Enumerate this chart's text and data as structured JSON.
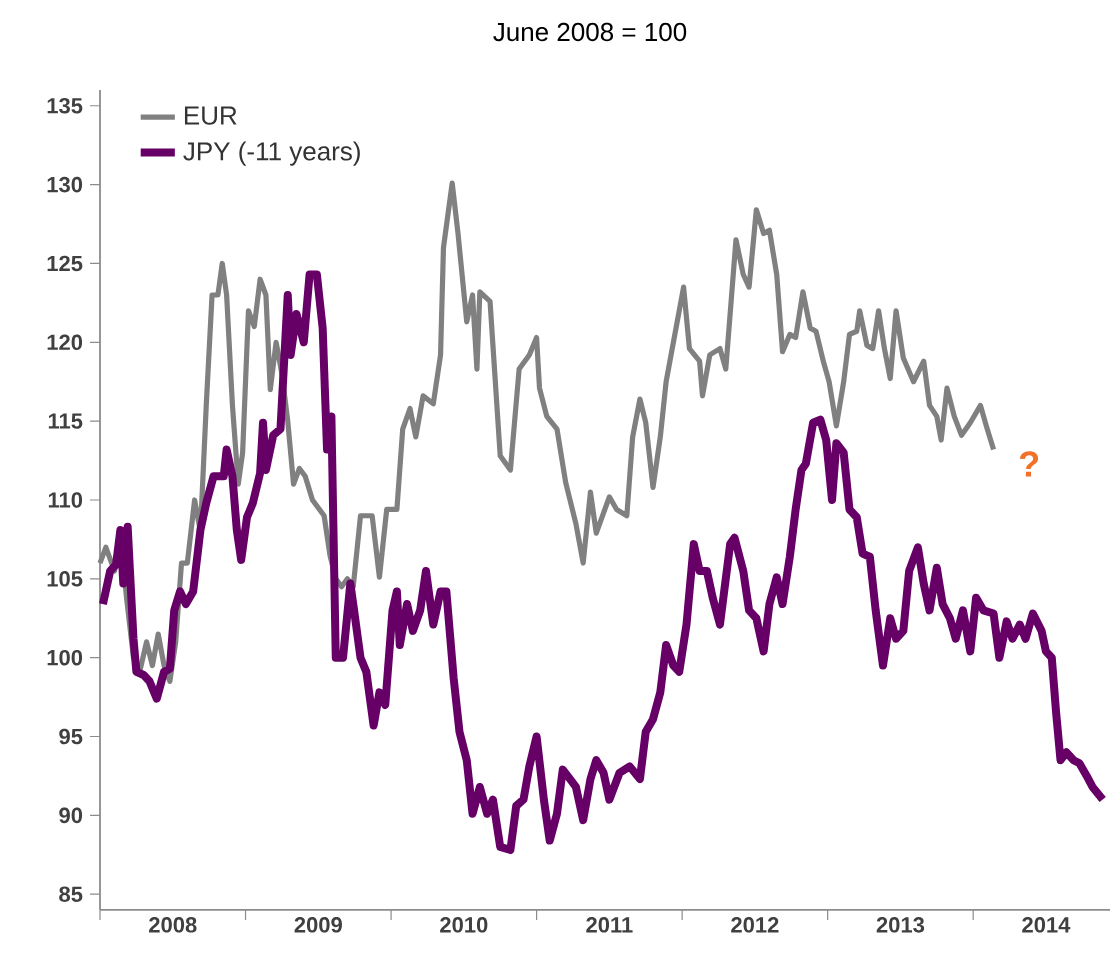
{
  "chart_data": {
    "type": "line",
    "title": "June 2008 = 100",
    "xlim": [
      2008,
      2014.94
    ],
    "ylim": [
      84,
      136
    ],
    "xticks": [
      {
        "value": 2008,
        "label": null
      },
      {
        "value": 2008.5,
        "label": "2008"
      },
      {
        "value": 2009,
        "label": null
      },
      {
        "value": 2009.5,
        "label": "2009"
      },
      {
        "value": 2010,
        "label": null
      },
      {
        "value": 2010.5,
        "label": "2010"
      },
      {
        "value": 2011,
        "label": null
      },
      {
        "value": 2011.5,
        "label": "2011"
      },
      {
        "value": 2012,
        "label": null
      },
      {
        "value": 2012.5,
        "label": "2012"
      },
      {
        "value": 2013,
        "label": null
      },
      {
        "value": 2013.5,
        "label": "2013"
      },
      {
        "value": 2014,
        "label": null
      },
      {
        "value": 2014.5,
        "label": "2014"
      }
    ],
    "yticks": [
      85,
      90,
      95,
      100,
      105,
      110,
      115,
      120,
      125,
      130,
      135
    ],
    "grid": false,
    "legend": "top left",
    "annotations": [
      "?"
    ],
    "series": [
      {
        "name": "EUR",
        "color": "#808080",
        "x": [
          2008.0,
          2008.04,
          2008.1,
          2008.14,
          2008.18,
          2008.23,
          2008.27,
          2008.32,
          2008.36,
          2008.4,
          2008.44,
          2008.48,
          2008.52,
          2008.56,
          2008.6,
          2008.65,
          2008.69,
          2008.73,
          2008.77,
          2008.81,
          2008.84,
          2008.87,
          2008.91,
          2008.95,
          2008.98,
          2009.02,
          2009.06,
          2009.1,
          2009.14,
          2009.17,
          2009.21,
          2009.25,
          2009.29,
          2009.33,
          2009.37,
          2009.41,
          2009.46,
          2009.5,
          2009.54,
          2009.58,
          2009.62,
          2009.66,
          2009.7,
          2009.74,
          2009.79,
          2009.87,
          2009.92,
          2009.97,
          2010.04,
          2010.08,
          2010.13,
          2010.17,
          2010.22,
          2010.29,
          2010.34,
          2010.36,
          2010.42,
          2010.46,
          2010.52,
          2010.56,
          2010.59,
          2010.61,
          2010.68,
          2010.75,
          2010.82,
          2010.88,
          2010.95,
          2011.0,
          2011.02,
          2011.07,
          2011.14,
          2011.2,
          2011.27,
          2011.32,
          2011.37,
          2011.41,
          2011.5,
          2011.55,
          2011.62,
          2011.66,
          2011.71,
          2011.75,
          2011.8,
          2011.85,
          2011.89,
          2011.94,
          2012.01,
          2012.05,
          2012.12,
          2012.14,
          2012.19,
          2012.26,
          2012.3,
          2012.37,
          2012.42,
          2012.46,
          2012.51,
          2012.56,
          2012.6,
          2012.65,
          2012.69,
          2012.74,
          2012.78,
          2012.83,
          2012.88,
          2012.92,
          2012.97,
          2013.01,
          2013.06,
          2013.11,
          2013.15,
          2013.2,
          2013.22,
          2013.27,
          2013.31,
          2013.35,
          2013.39,
          2013.43,
          2013.47,
          2013.52,
          2013.59,
          2013.66,
          2013.7,
          2013.75,
          2013.78,
          2013.82,
          2013.87,
          2013.92,
          2013.98,
          2014.05,
          2014.09,
          2014.14
        ],
        "values": [
          106,
          107,
          105.5,
          108,
          104,
          100,
          99,
          101,
          99.5,
          101.5,
          99.5,
          98.5,
          101,
          106,
          106,
          110,
          108,
          116,
          123,
          123,
          125,
          123,
          116,
          111,
          113,
          122,
          121,
          124,
          123,
          117,
          120,
          118,
          115,
          111,
          112,
          111.5,
          110,
          109.5,
          109,
          106.5,
          105,
          104.5,
          105,
          104.5,
          109,
          109,
          105.1,
          109.4,
          109.4,
          114.5,
          115.8,
          114,
          116.6,
          116.1,
          119.2,
          126,
          130.1,
          126.9,
          121.3,
          123,
          118.3,
          123.2,
          122.6,
          112.8,
          111.9,
          118.3,
          119.2,
          120.3,
          117.1,
          115.3,
          114.5,
          111.1,
          108.5,
          106,
          110.5,
          107.9,
          110.2,
          109.4,
          109,
          114,
          116.4,
          114.9,
          110.8,
          114,
          117.5,
          120,
          123.5,
          119.6,
          118.8,
          116.6,
          119.2,
          119.6,
          118.3,
          126.5,
          124.3,
          123.5,
          128.4,
          126.9,
          127.1,
          124.3,
          119.4,
          120.5,
          120.3,
          123.2,
          120.9,
          120.7,
          118.8,
          117.5,
          114.7,
          117.5,
          120.5,
          120.7,
          122,
          119.8,
          119.6,
          122,
          119.6,
          117.7,
          122,
          119,
          117.5,
          118.8,
          116,
          115.3,
          113.8,
          117.1,
          115.3,
          114.1,
          114.9,
          116,
          114.7,
          113.2
        ]
      },
      {
        "name": "JPY (-11 years)",
        "color": "#660066",
        "x": [
          2008.02,
          2008.07,
          2008.11,
          2008.14,
          2008.16,
          2008.19,
          2008.23,
          2008.25,
          2008.3,
          2008.34,
          2008.39,
          2008.44,
          2008.48,
          2008.51,
          2008.55,
          2008.59,
          2008.64,
          2008.69,
          2008.73,
          2008.78,
          2008.85,
          2008.87,
          2008.91,
          2008.94,
          2008.97,
          2009.01,
          2009.05,
          2009.1,
          2009.12,
          2009.14,
          2009.19,
          2009.24,
          2009.29,
          2009.31,
          2009.35,
          2009.4,
          2009.44,
          2009.49,
          2009.53,
          2009.56,
          2009.59,
          2009.62,
          2009.67,
          2009.72,
          2009.74,
          2009.79,
          2009.83,
          2009.88,
          2009.92,
          2009.96,
          2010.01,
          2010.04,
          2010.06,
          2010.11,
          2010.15,
          2010.2,
          2010.24,
          2010.29,
          2010.34,
          2010.38,
          2010.43,
          2010.47,
          2010.52,
          2010.56,
          2010.61,
          2010.66,
          2010.7,
          2010.75,
          2010.82,
          2010.86,
          2010.91,
          2010.95,
          2011.0,
          2011.05,
          2011.09,
          2011.14,
          2011.18,
          2011.23,
          2011.27,
          2011.32,
          2011.37,
          2011.41,
          2011.46,
          2011.5,
          2011.57,
          2011.64,
          2011.71,
          2011.75,
          2011.8,
          2011.85,
          2011.89,
          2011.94,
          2011.98,
          2012.03,
          2012.08,
          2012.12,
          2012.17,
          2012.21,
          2012.26,
          2012.33,
          2012.36,
          2012.42,
          2012.46,
          2012.51,
          2012.56,
          2012.6,
          2012.65,
          2012.69,
          2012.74,
          2012.78,
          2012.82,
          2012.85,
          2012.9,
          2012.95,
          2012.99,
          2013.03,
          2013.06,
          2013.11,
          2013.15,
          2013.2,
          2013.24,
          2013.29,
          2013.33,
          2013.38,
          2013.43,
          2013.47,
          2013.52,
          2013.56,
          2013.62,
          2013.66,
          2013.7,
          2013.75,
          2013.79,
          2013.84,
          2013.88,
          2013.93,
          2013.98,
          2014.02,
          2014.07,
          2014.14,
          2014.18,
          2014.23,
          2014.27,
          2014.32,
          2014.36,
          2014.41,
          2014.47,
          2014.5,
          2014.54,
          2014.57,
          2014.6,
          2014.64,
          2014.69,
          2014.73,
          2014.78,
          2014.82,
          2014.89
        ],
        "values": [
          103.4,
          105.5,
          105.9,
          108.1,
          104.7,
          108.3,
          101.2,
          99.1,
          98.9,
          98.5,
          97.4,
          99.1,
          99.3,
          103,
          104.2,
          103.4,
          104.2,
          108.1,
          109.8,
          111.5,
          111.5,
          113.2,
          111.5,
          108.1,
          106.2,
          108.9,
          109.8,
          111.7,
          114.9,
          111.9,
          114.1,
          114.5,
          123,
          119.2,
          121.8,
          120,
          124.3,
          124.3,
          120.9,
          113.2,
          115.3,
          100,
          100,
          104.7,
          103.4,
          100,
          99.1,
          95.7,
          97.8,
          97,
          103,
          104.2,
          100.8,
          103.4,
          101.7,
          103,
          105.5,
          102.1,
          104.2,
          104.2,
          98.7,
          95.3,
          93.5,
          90.1,
          91.8,
          90.1,
          91,
          88,
          87.8,
          90.6,
          91,
          93.1,
          95,
          91,
          88.4,
          90.1,
          92.9,
          92.3,
          91.8,
          89.7,
          92.3,
          93.5,
          92.7,
          91,
          92.7,
          93.1,
          92.3,
          95.3,
          96.1,
          97.8,
          100.8,
          99.5,
          99.1,
          102.1,
          107.2,
          105.5,
          105.5,
          103.8,
          102.1,
          107.2,
          107.6,
          105.5,
          103,
          102.5,
          100.4,
          103.4,
          105.1,
          103.4,
          106.4,
          109.4,
          111.9,
          112.3,
          114.9,
          115.1,
          113.8,
          110,
          113.6,
          113,
          109.4,
          108.9,
          106.6,
          106.4,
          103,
          99.5,
          102.5,
          101.2,
          101.7,
          105.5,
          107,
          104.7,
          103,
          105.7,
          103.4,
          102.5,
          101.2,
          103,
          100.4,
          103.8,
          103,
          102.8,
          100,
          102.3,
          101.2,
          102.1,
          101.2,
          102.8,
          101.7,
          100.4,
          100,
          96.5,
          93.5,
          94,
          93.5,
          93.3,
          92.5,
          91.8,
          91
        ]
      }
    ]
  }
}
